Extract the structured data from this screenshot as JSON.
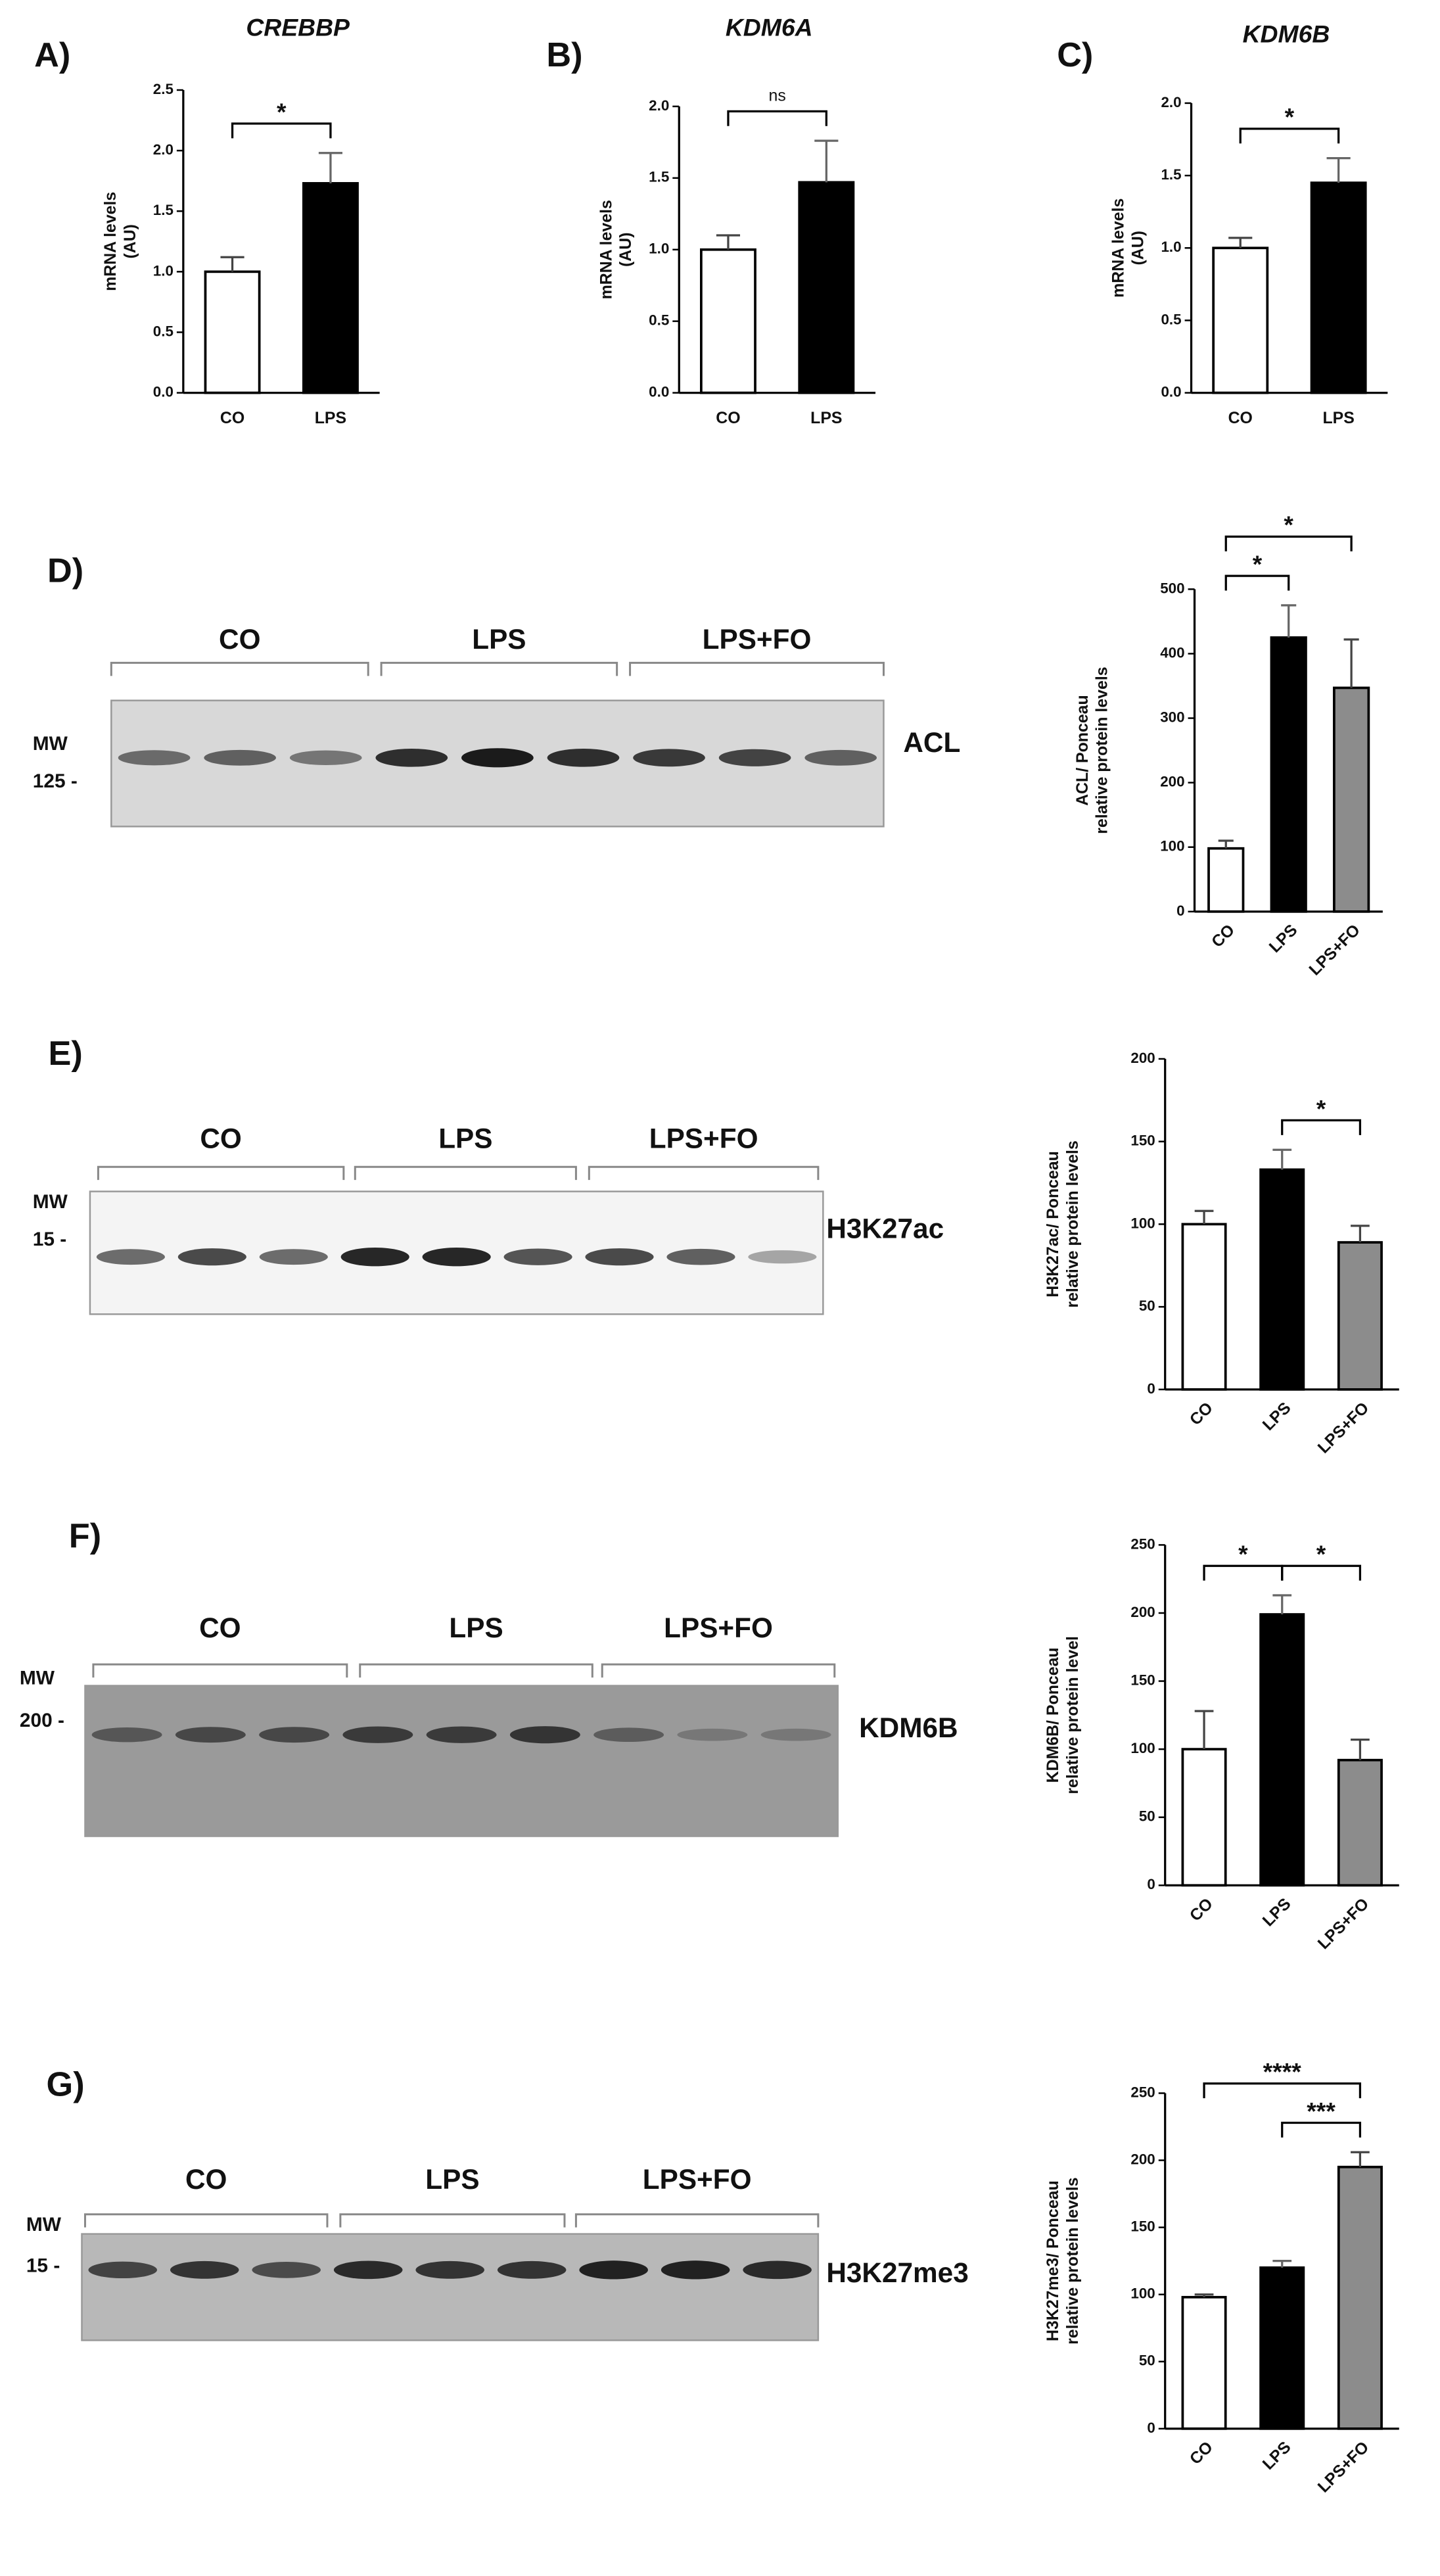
{
  "chart_data": [
    {
      "type": "bar",
      "panel": "A)",
      "title": "CREBBP",
      "ylabel": [
        "mRNA levels",
        "(AU)"
      ],
      "categories": [
        "CO",
        "LPS"
      ],
      "values": [
        1.0,
        1.73
      ],
      "errors": [
        0.12,
        0.25
      ],
      "colors": [
        "#ffffff",
        "#000000"
      ],
      "ylim": [
        0,
        2.5
      ],
      "yticks": [
        {
          "value": 0,
          "label": "0.0"
        },
        0.5,
        {
          "value": 1,
          "label": "1.0"
        },
        1.5,
        {
          "value": 2,
          "label": "2.0"
        },
        2.5
      ],
      "annotations": [
        {
          "text": "*",
          "from": 0,
          "to": 1
        }
      ]
    },
    {
      "type": "bar",
      "panel": "B)",
      "title": "KDM6A",
      "ylabel": [
        "mRNA levels",
        "(AU)"
      ],
      "categories": [
        "CO",
        "LPS"
      ],
      "values": [
        1.0,
        1.47
      ],
      "errors": [
        0.1,
        0.29
      ],
      "colors": [
        "#ffffff",
        "#000000"
      ],
      "ylim": [
        0,
        2
      ],
      "yticks": [
        {
          "value": 0,
          "label": "0.0"
        },
        0.5,
        {
          "value": 1,
          "label": "1.0"
        },
        1.5,
        {
          "value": 2,
          "label": "2.0"
        }
      ],
      "annotations": [
        {
          "text": "ns",
          "from": 0,
          "to": 1
        }
      ]
    },
    {
      "type": "bar",
      "panel": "C)",
      "title": "KDM6B",
      "ylabel": [
        "mRNA levels",
        "(AU)"
      ],
      "categories": [
        "CO",
        "LPS"
      ],
      "values": [
        1.0,
        1.45
      ],
      "errors": [
        0.07,
        0.17
      ],
      "colors": [
        "#ffffff",
        "#000000"
      ],
      "ylim": [
        0,
        2
      ],
      "yticks": [
        {
          "value": 0,
          "label": "0.0"
        },
        0.5,
        {
          "value": 1,
          "label": "1.0"
        },
        1.5,
        {
          "value": 2,
          "label": "2.0"
        }
      ],
      "annotations": [
        {
          "text": "*",
          "from": 0,
          "to": 1
        }
      ]
    },
    {
      "type": "bar",
      "ylabel": [
        "ACL/ Ponceau",
        "relative protein levels"
      ],
      "x_label_rotation": -45,
      "categories": [
        "CO",
        "LPS",
        "LPS+FO"
      ],
      "values": [
        98,
        425,
        347
      ],
      "errors": [
        12,
        50,
        75
      ],
      "colors": [
        "#ffffff",
        "#000000",
        "#8c8c8c"
      ],
      "ylim": [
        0,
        500
      ],
      "yticks": [
        0,
        100,
        200,
        300,
        400,
        500
      ],
      "annotations": [
        {
          "text": "*",
          "from": 0,
          "to": 1
        },
        {
          "text": "*",
          "from": 0,
          "to": 2
        }
      ]
    },
    {
      "type": "bar",
      "ylabel": [
        "H3K27ac/ Ponceau",
        "relative protein levels"
      ],
      "x_label_rotation": -45,
      "categories": [
        "CO",
        "LPS",
        "LPS+FO"
      ],
      "values": [
        100,
        133,
        89
      ],
      "errors": [
        8,
        12,
        10
      ],
      "colors": [
        "#ffffff",
        "#000000",
        "#8c8c8c"
      ],
      "ylim": [
        0,
        200
      ],
      "yticks": [
        0,
        50,
        100,
        150,
        200
      ],
      "annotations": [
        {
          "text": "*",
          "from": 1,
          "to": 2
        }
      ]
    },
    {
      "type": "bar",
      "ylabel": [
        "KDM6B/ Ponceau",
        "relative protein level"
      ],
      "x_label_rotation": -45,
      "categories": [
        "CO",
        "LPS",
        "LPS+FO"
      ],
      "values": [
        100,
        199,
        92
      ],
      "errors": [
        28,
        14,
        15
      ],
      "colors": [
        "#ffffff",
        "#000000",
        "#8c8c8c"
      ],
      "ylim": [
        0,
        250
      ],
      "yticks": [
        0,
        50,
        100,
        150,
        200,
        250
      ],
      "annotations": [
        {
          "text": "*",
          "from": 0,
          "to": 1
        },
        {
          "text": "*",
          "from": 1,
          "to": 2
        }
      ]
    },
    {
      "type": "bar",
      "ylabel": [
        "H3K27me3/ Ponceau",
        "relative protein levels"
      ],
      "x_label_rotation": -45,
      "categories": [
        "CO",
        "LPS",
        "LPS+FO"
      ],
      "values": [
        98,
        120,
        195
      ],
      "errors": [
        2,
        5,
        11
      ],
      "colors": [
        "#ffffff",
        "#000000",
        "#8c8c8c"
      ],
      "ylim": [
        0,
        250
      ],
      "yticks": [
        0,
        50,
        100,
        150,
        200,
        250
      ],
      "annotations": [
        {
          "text": "****",
          "from": 0,
          "to": 2
        },
        {
          "text": "***",
          "from": 1,
          "to": 2
        }
      ]
    }
  ],
  "blots": [
    {
      "panel": "D)",
      "groups": [
        "CO",
        "LPS",
        "LPS+FO"
      ],
      "mw_label": "MW",
      "mw_marker": "125 -",
      "target": "ACL"
    },
    {
      "panel": "E)",
      "groups": [
        "CO",
        "LPS",
        "LPS+FO"
      ],
      "mw_label": "MW",
      "mw_marker": "15 -",
      "target": "H3K27ac"
    },
    {
      "panel": "F)",
      "groups": [
        "CO",
        "LPS",
        "LPS+FO"
      ],
      "mw_label": "MW",
      "mw_marker": "200 -",
      "target": "KDM6B"
    },
    {
      "panel": "G)",
      "groups": [
        "CO",
        "LPS",
        "LPS+FO"
      ],
      "mw_label": "MW",
      "mw_marker": "15 -",
      "target": "H3K27me3"
    }
  ]
}
